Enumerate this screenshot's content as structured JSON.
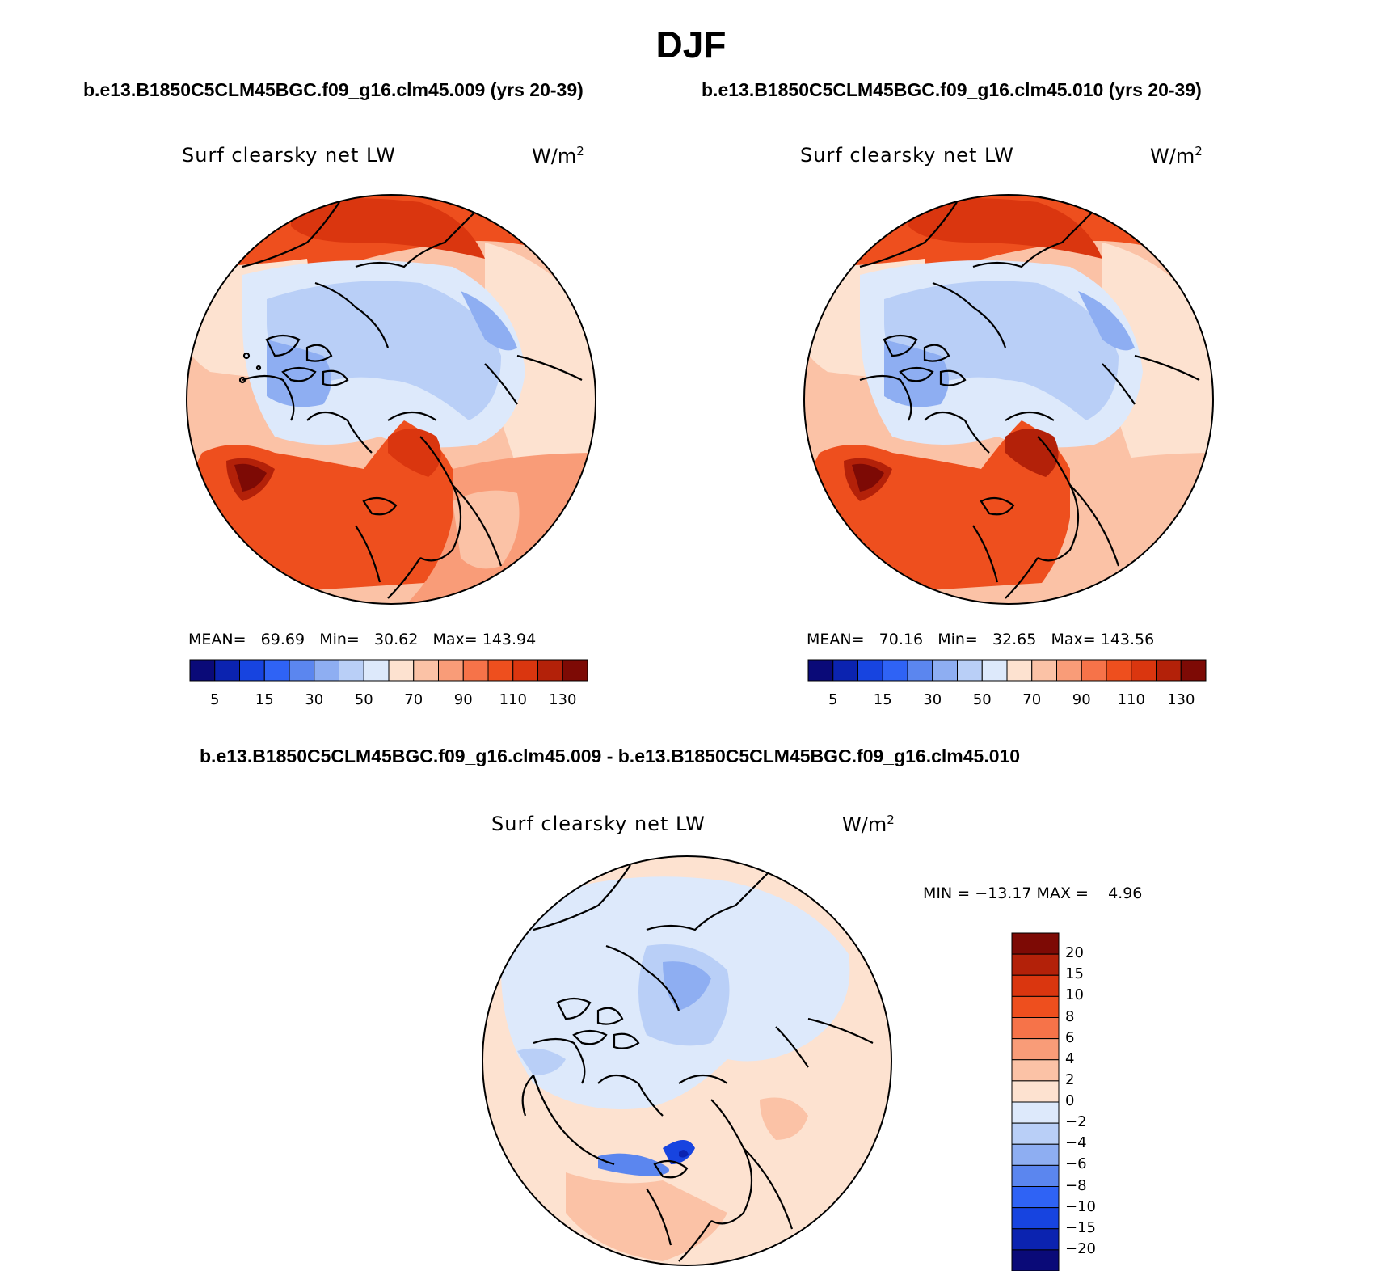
{
  "title": "DJF",
  "panels": [
    {
      "case_title": "b.e13.B1850C5CLM45BGC.f09_g16.clm45.009 (yrs 20-39)",
      "variable": "Surf clearsky net LW",
      "units": "W/m",
      "units_sup": "2",
      "stats": {
        "mean_label": "MEAN=",
        "mean": "69.69",
        "min_label": "Min=",
        "min": "30.62",
        "max_label": "Max=",
        "max": "143.94"
      }
    },
    {
      "case_title": "b.e13.B1850C5CLM45BGC.f09_g16.clm45.010 (yrs 20-39)",
      "variable": "Surf clearsky net LW",
      "units": "W/m",
      "units_sup": "2",
      "stats": {
        "mean_label": "MEAN=",
        "mean": "70.16",
        "min_label": "Min=",
        "min": "32.65",
        "max_label": "Max=",
        "max": "143.56"
      }
    }
  ],
  "diff_panel": {
    "title": "b.e13.B1850C5CLM45BGC.f09_g16.clm45.009 - b.e13.B1850C5CLM45BGC.f09_g16.clm45.010",
    "variable": "Surf clearsky net LW",
    "units": "W/m",
    "units_sup": "2",
    "minmax": "MIN = −13.17 MAX =    4.96"
  },
  "colorbar_abs": {
    "colors": [
      "#0a0a78",
      "#0b23b0",
      "#1744e0",
      "#2f63f5",
      "#5b86ef",
      "#8eaef2",
      "#b9cff7",
      "#dde9fb",
      "#fde2d0",
      "#fbc2a6",
      "#f99c78",
      "#f67349",
      "#ee4f1e",
      "#da360f",
      "#b32109",
      "#7d0a05"
    ],
    "labels": [
      "5",
      "15",
      "30",
      "50",
      "70",
      "90",
      "110",
      "130"
    ]
  },
  "colorbar_diff": {
    "colors": [
      "#7d0a05",
      "#b32109",
      "#da360f",
      "#ee4f1e",
      "#f67349",
      "#f99c78",
      "#fbc2a6",
      "#fde2d0",
      "#dde9fb",
      "#b9cff7",
      "#8eaef2",
      "#5b86ef",
      "#2f63f5",
      "#1744e0",
      "#0b23b0",
      "#0a0a78"
    ],
    "labels": [
      "20",
      "15",
      "10",
      "8",
      "6",
      "4",
      "2",
      "0",
      "−2",
      "−4",
      "−6",
      "−8",
      "−10",
      "−15",
      "−20"
    ]
  },
  "map_colors": {
    "ocean_warm": "#ee4f1e",
    "deep_warm": "#b32109",
    "peach": "#fbc2a6",
    "pale": "#fde2d0",
    "ice_light": "#dde9fb",
    "ice_mid": "#b9cff7",
    "ice_blue": "#8eaef2",
    "coast": "#000000"
  }
}
